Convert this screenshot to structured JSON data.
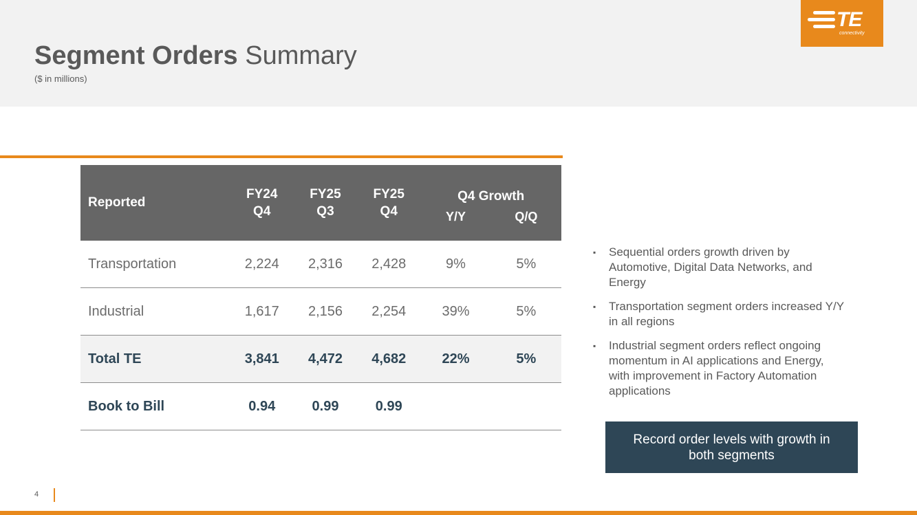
{
  "slide": {
    "title_bold": "Segment Orders",
    "title_light": "Summary",
    "subtitle": "($ in millions)",
    "page_number": "4"
  },
  "logo": {
    "mark": "TE",
    "sub": "connectivity",
    "color": "#e8891c"
  },
  "table": {
    "header": {
      "reported": "Reported",
      "fy24q4_line1": "FY24",
      "fy24q4_line2": "Q4",
      "fy25q3_line1": "FY25",
      "fy25q3_line2": "Q3",
      "fy25q4_line1": "FY25",
      "fy25q4_line2": "Q4",
      "growth": "Q4 Growth",
      "yy": "Y/Y",
      "qq": "Q/Q"
    },
    "rows": [
      {
        "label": "Transportation",
        "fy24q4": "2,224",
        "fy25q3": "2,316",
        "fy25q4": "2,428",
        "yy": "9%",
        "qq": "5%"
      },
      {
        "label": "Industrial",
        "fy24q4": "1,617",
        "fy25q3": "2,156",
        "fy25q4": "2,254",
        "yy": "39%",
        "qq": "5%"
      },
      {
        "label": "Total TE",
        "fy24q4": "3,841",
        "fy25q3": "4,472",
        "fy25q4": "4,682",
        "yy": "22%",
        "qq": "5%"
      },
      {
        "label": "Book to Bill",
        "fy24q4": "0.94",
        "fy25q3": "0.99",
        "fy25q4": "0.99",
        "yy": "",
        "qq": ""
      }
    ]
  },
  "bullets": [
    "Sequential orders growth driven by Automotive, Digital Data Networks, and Energy",
    "Transportation segment orders increased Y/Y in all regions",
    "Industrial segment orders reflect ongoing momentum in AI applications and Energy, with improvement in Factory Automation applications"
  ],
  "callout": "Record order levels with growth in both segments",
  "colors": {
    "accent": "#e8891c",
    "navy": "#2e4656",
    "header_gray": "#666666"
  }
}
